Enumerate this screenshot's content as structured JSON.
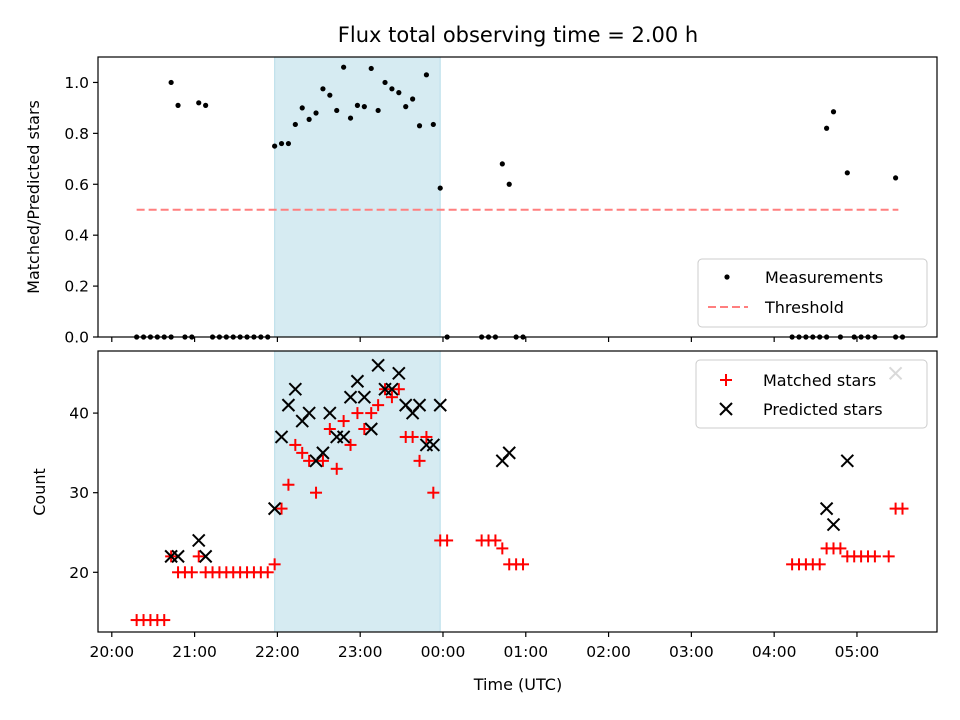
{
  "chart_data": [
    {
      "type": "scatter",
      "title": "Flux total observing time = 2.00 h",
      "ylabel": "Matched/Predicted stars",
      "xlabel": "",
      "xlim": [
        "19:50",
        "05:58"
      ],
      "ylim": [
        0,
        1.1
      ],
      "yticks": [
        "0.0",
        "0.2",
        "0.4",
        "0.6",
        "0.8",
        "1.0"
      ],
      "shaded_region": {
        "start": "21:58",
        "end": "23:58",
        "color": "#add8e6"
      },
      "threshold": {
        "name": "Threshold",
        "value": 0.5,
        "x_start": "20:18",
        "x_end": "05:30",
        "color": "#ff7f7f"
      },
      "series": [
        {
          "name": "Measurements",
          "color": "#000000",
          "points": [
            [
              "20:18",
              0
            ],
            [
              "20:23",
              0
            ],
            [
              "20:28",
              0
            ],
            [
              "20:33",
              0
            ],
            [
              "20:38",
              0
            ],
            [
              "20:43",
              0
            ],
            [
              "20:43",
              1.0
            ],
            [
              "20:48",
              0.91
            ],
            [
              "20:53",
              0
            ],
            [
              "20:58",
              0
            ],
            [
              "21:03",
              0.92
            ],
            [
              "21:08",
              0.91
            ],
            [
              "21:13",
              0
            ],
            [
              "21:18",
              0
            ],
            [
              "21:23",
              0
            ],
            [
              "21:28",
              0
            ],
            [
              "21:33",
              0
            ],
            [
              "21:38",
              0
            ],
            [
              "21:43",
              0
            ],
            [
              "21:48",
              0
            ],
            [
              "21:53",
              0
            ],
            [
              "21:58",
              0.75
            ],
            [
              "22:03",
              0.76
            ],
            [
              "22:08",
              0.76
            ],
            [
              "22:13",
              0.835
            ],
            [
              "22:18",
              0.9
            ],
            [
              "22:23",
              0.855
            ],
            [
              "22:28",
              0.88
            ],
            [
              "22:33",
              0.975
            ],
            [
              "22:38",
              0.95
            ],
            [
              "22:43",
              0.89
            ],
            [
              "22:48",
              1.06
            ],
            [
              "22:53",
              0.86
            ],
            [
              "22:58",
              0.91
            ],
            [
              "23:03",
              0.905
            ],
            [
              "23:08",
              1.055
            ],
            [
              "23:13",
              0.89
            ],
            [
              "23:18",
              1.0
            ],
            [
              "23:23",
              0.975
            ],
            [
              "23:28",
              0.96
            ],
            [
              "23:33",
              0.905
            ],
            [
              "23:38",
              0.935
            ],
            [
              "23:43",
              0.83
            ],
            [
              "23:48",
              1.03
            ],
            [
              "23:53",
              0.835
            ],
            [
              "23:58",
              0.585
            ],
            [
              "00:03",
              0
            ],
            [
              "00:28",
              0
            ],
            [
              "00:33",
              0
            ],
            [
              "00:38",
              0
            ],
            [
              "00:43",
              0.68
            ],
            [
              "00:48",
              0.6
            ],
            [
              "00:53",
              0
            ],
            [
              "00:58",
              0
            ],
            [
              "04:13",
              0
            ],
            [
              "04:18",
              0
            ],
            [
              "04:23",
              0
            ],
            [
              "04:28",
              0
            ],
            [
              "04:33",
              0
            ],
            [
              "04:38",
              0
            ],
            [
              "04:38",
              0.82
            ],
            [
              "04:43",
              0.885
            ],
            [
              "04:48",
              0
            ],
            [
              "04:53",
              0.645
            ],
            [
              "04:58",
              0
            ],
            [
              "05:03",
              0
            ],
            [
              "05:08",
              0
            ],
            [
              "05:13",
              0
            ],
            [
              "05:28",
              0
            ],
            [
              "05:28",
              0.625
            ],
            [
              "05:33",
              0
            ]
          ]
        }
      ],
      "legend": {
        "placement": "lower right",
        "entries": [
          "Measurements",
          "Threshold"
        ]
      }
    },
    {
      "type": "scatter",
      "title": "",
      "ylabel": "Count",
      "xlabel": "Time (UTC)",
      "xlim": [
        "19:50",
        "05:58"
      ],
      "ylim": [
        12.5,
        47.8
      ],
      "yticks": [
        "20",
        "30",
        "40"
      ],
      "xticks": [
        "20:00",
        "21:00",
        "22:00",
        "23:00",
        "00:00",
        "01:00",
        "02:00",
        "03:00",
        "04:00",
        "05:00"
      ],
      "shaded_region": {
        "start": "21:58",
        "end": "23:58",
        "color": "#add8e6"
      },
      "series": [
        {
          "name": "Matched stars",
          "marker": "plus",
          "color": "#ff0000",
          "points": [
            [
              "20:18",
              14
            ],
            [
              "20:23",
              14
            ],
            [
              "20:28",
              14
            ],
            [
              "20:33",
              14
            ],
            [
              "20:38",
              14
            ],
            [
              "20:43",
              22
            ],
            [
              "20:48",
              20
            ],
            [
              "20:53",
              20
            ],
            [
              "20:58",
              20
            ],
            [
              "21:03",
              22
            ],
            [
              "21:08",
              20
            ],
            [
              "21:13",
              20
            ],
            [
              "21:18",
              20
            ],
            [
              "21:23",
              20
            ],
            [
              "21:28",
              20
            ],
            [
              "21:33",
              20
            ],
            [
              "21:38",
              20
            ],
            [
              "21:43",
              20
            ],
            [
              "21:48",
              20
            ],
            [
              "21:53",
              20
            ],
            [
              "21:58",
              21
            ],
            [
              "22:03",
              28
            ],
            [
              "22:08",
              31
            ],
            [
              "22:13",
              36
            ],
            [
              "22:18",
              35
            ],
            [
              "22:23",
              34
            ],
            [
              "22:28",
              30
            ],
            [
              "22:33",
              34
            ],
            [
              "22:38",
              38
            ],
            [
              "22:43",
              33
            ],
            [
              "22:48",
              39
            ],
            [
              "22:53",
              36
            ],
            [
              "22:58",
              40
            ],
            [
              "23:03",
              38
            ],
            [
              "23:08",
              40
            ],
            [
              "23:13",
              41
            ],
            [
              "23:18",
              43
            ],
            [
              "23:23",
              42
            ],
            [
              "23:28",
              43
            ],
            [
              "23:33",
              37
            ],
            [
              "23:38",
              37
            ],
            [
              "23:43",
              34
            ],
            [
              "23:48",
              37
            ],
            [
              "23:53",
              30
            ],
            [
              "23:58",
              24
            ],
            [
              "00:03",
              24
            ],
            [
              "00:28",
              24
            ],
            [
              "00:33",
              24
            ],
            [
              "00:38",
              24
            ],
            [
              "00:43",
              23
            ],
            [
              "00:48",
              21
            ],
            [
              "00:53",
              21
            ],
            [
              "00:58",
              21
            ],
            [
              "04:13",
              21
            ],
            [
              "04:18",
              21
            ],
            [
              "04:23",
              21
            ],
            [
              "04:28",
              21
            ],
            [
              "04:33",
              21
            ],
            [
              "04:38",
              23
            ],
            [
              "04:43",
              23
            ],
            [
              "04:48",
              23
            ],
            [
              "04:53",
              22
            ],
            [
              "04:58",
              22
            ],
            [
              "05:03",
              22
            ],
            [
              "05:08",
              22
            ],
            [
              "05:13",
              22
            ],
            [
              "05:23",
              22
            ],
            [
              "05:28",
              28
            ],
            [
              "05:33",
              28
            ]
          ]
        },
        {
          "name": "Predicted stars",
          "marker": "x",
          "color": "#000000",
          "points": [
            [
              "20:43",
              22
            ],
            [
              "20:48",
              22
            ],
            [
              "21:03",
              24
            ],
            [
              "21:08",
              22
            ],
            [
              "21:58",
              28
            ],
            [
              "22:03",
              37
            ],
            [
              "22:08",
              41
            ],
            [
              "22:13",
              43
            ],
            [
              "22:18",
              39
            ],
            [
              "22:23",
              40
            ],
            [
              "22:28",
              34
            ],
            [
              "22:33",
              35
            ],
            [
              "22:38",
              40
            ],
            [
              "22:43",
              37
            ],
            [
              "22:48",
              37
            ],
            [
              "22:53",
              42
            ],
            [
              "22:58",
              44
            ],
            [
              "23:03",
              42
            ],
            [
              "23:08",
              38
            ],
            [
              "23:13",
              46
            ],
            [
              "23:18",
              43
            ],
            [
              "23:23",
              43
            ],
            [
              "23:28",
              45
            ],
            [
              "23:33",
              41
            ],
            [
              "23:38",
              40
            ],
            [
              "23:43",
              41
            ],
            [
              "23:48",
              36
            ],
            [
              "23:53",
              36
            ],
            [
              "23:58",
              41
            ],
            [
              "00:43",
              34
            ],
            [
              "00:48",
              35
            ],
            [
              "04:38",
              28
            ],
            [
              "04:43",
              26
            ],
            [
              "04:53",
              34
            ],
            [
              "05:28",
              45
            ]
          ]
        }
      ],
      "legend": {
        "placement": "upper right",
        "entries": [
          "Matched stars",
          "Predicted stars"
        ]
      }
    }
  ]
}
